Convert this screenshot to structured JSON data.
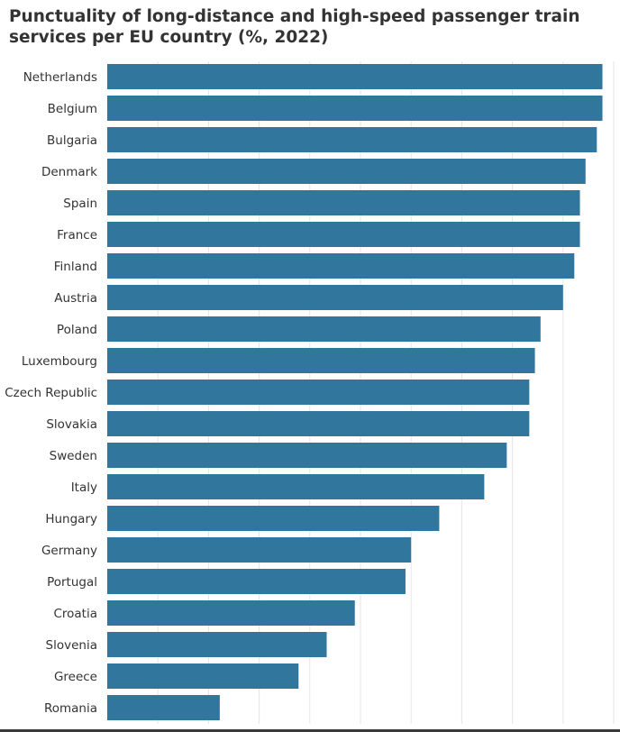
{
  "chart_data": {
    "type": "bar",
    "orientation": "horizontal",
    "title": "Punctuality of long-distance and high-speed passenger train services per EU country (%, 2022)",
    "xlabel": "",
    "ylabel": "",
    "categories": [
      "Netherlands",
      "Belgium",
      "Bulgaria",
      "Denmark",
      "Spain",
      "France",
      "Finland",
      "Austria",
      "Poland",
      "Luxembourg",
      "Czech Republic",
      "Slovakia",
      "Sweden",
      "Italy",
      "Hungary",
      "Germany",
      "Portugal",
      "Croatia",
      "Slovenia",
      "Greece",
      "Romania"
    ],
    "values": [
      88,
      88,
      87,
      85,
      84,
      84,
      83,
      81,
      77,
      76,
      75,
      75,
      71,
      67,
      59,
      54,
      53,
      44,
      39,
      34,
      20
    ],
    "xlim": [
      0,
      90
    ],
    "grid": true,
    "legend": "none",
    "bar_color": "#31769d",
    "grid_color": "#e6e6e6"
  }
}
